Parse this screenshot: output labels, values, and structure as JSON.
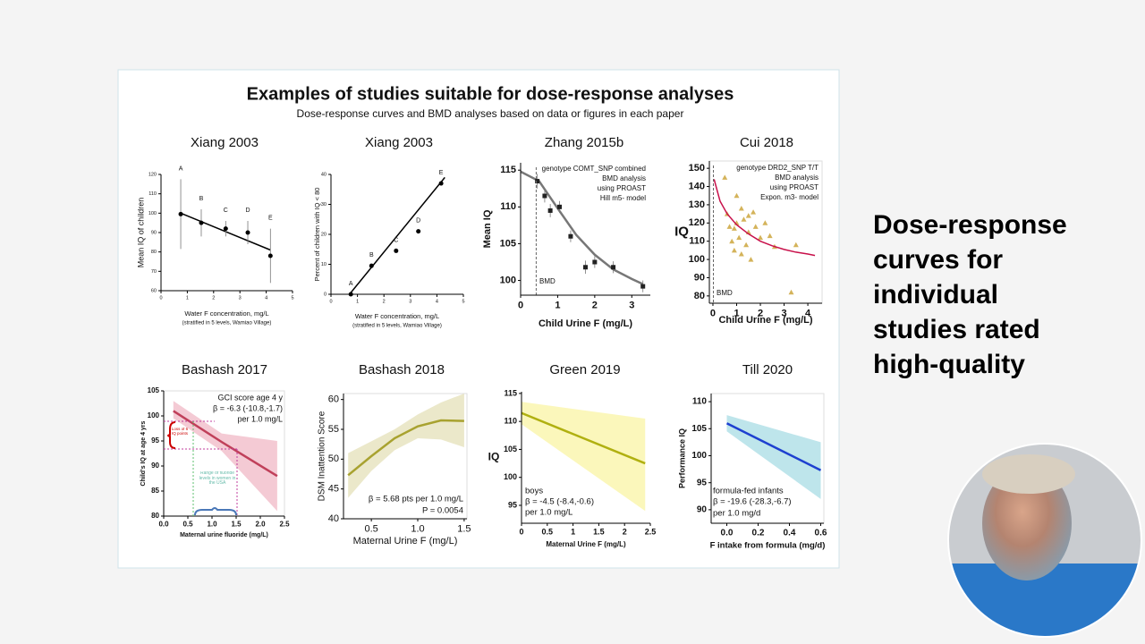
{
  "slide": {
    "title": "Examples of studies suitable for dose-response analyses",
    "subtitle": "Dose-response curves and BMD analyses based on data or figures in each paper",
    "side_text": "Dose-response curves for individual studies rated high-quality"
  },
  "chart_data": [
    {
      "type": "scatter",
      "title": "Xiang 2003",
      "xlabel": "Water F concentration, mg/L",
      "xnote": "(stratified in 5 levels, Wamiao Village)",
      "ylabel": "Mean IQ of children",
      "xlim": [
        0,
        5
      ],
      "xticks": [
        0,
        1,
        2,
        3,
        4,
        5
      ],
      "ylim": [
        60,
        120
      ],
      "yticks": [
        60,
        70,
        80,
        90,
        100,
        110,
        120
      ],
      "series": [
        {
          "style": "line",
          "color": "#000000",
          "x": [
            0.75,
            4.16
          ],
          "y": [
            100,
            81
          ]
        },
        {
          "style": "points",
          "marker": "circle",
          "color": "#000000",
          "x": [
            0.75,
            1.53,
            2.46,
            3.3,
            4.16
          ],
          "y": [
            99.5,
            95,
            92,
            90,
            78
          ],
          "err": [
            18,
            7,
            4,
            6,
            14
          ],
          "labels": [
            "A",
            "B",
            "C",
            "D",
            "E"
          ]
        }
      ]
    },
    {
      "type": "scatter",
      "title": "Xiang 2003",
      "xlabel": "Water F concentration, mg/L",
      "xnote": "(stratified in 5 levels, Wamiao Village)",
      "ylabel": "Percent of children with IQ < 80",
      "xlim": [
        0,
        5
      ],
      "xticks": [
        0,
        1,
        2,
        3,
        4,
        5
      ],
      "ylim": [
        0,
        40
      ],
      "yticks": [
        0,
        10,
        20,
        30,
        40
      ],
      "series": [
        {
          "style": "line",
          "color": "#000000",
          "x": [
            0.7,
            4.3
          ],
          "y": [
            0,
            39
          ]
        },
        {
          "style": "points",
          "marker": "circle",
          "color": "#000000",
          "x": [
            0.75,
            1.53,
            2.46,
            3.3,
            4.16
          ],
          "y": [
            0,
            9.5,
            14.5,
            21,
            37
          ],
          "labels": [
            "A",
            "B",
            "C",
            "D",
            "E"
          ]
        }
      ]
    },
    {
      "type": "line",
      "title": "Zhang 2015b",
      "xlabel": "Child Urine F (mg/L)",
      "ylabel": "Mean IQ",
      "xlim": [
        0,
        3.5
      ],
      "xticks": [
        0,
        1,
        2,
        3
      ],
      "ylim": [
        98,
        116
      ],
      "yticks": [
        100,
        105,
        110,
        115
      ],
      "bmd": 0.42,
      "annotations": [
        "genotype COMT_SNP combined",
        "BMD analysis",
        "using PROAST",
        "Hill m5- model",
        "BMD"
      ],
      "series": [
        {
          "style": "line",
          "color": "#777777",
          "x": [
            0,
            0.5,
            1,
            1.5,
            2,
            2.5,
            3,
            3.3
          ],
          "y": [
            114.8,
            113.5,
            109.8,
            106.2,
            103.5,
            101.5,
            100.2,
            99.5
          ]
        },
        {
          "style": "points",
          "marker": "square",
          "color": "#222222",
          "x": [
            0.45,
            0.65,
            0.8,
            1.05,
            1.35,
            1.75,
            2,
            2.5,
            3.3
          ],
          "y": [
            113.5,
            111.5,
            109.5,
            110,
            106,
            101.8,
            102.5,
            101.8,
            99.2
          ],
          "err": [
            1,
            0.9,
            0.9,
            0.8,
            0.8,
            0.9,
            0.8,
            0.8,
            0.8
          ]
        }
      ]
    },
    {
      "type": "scatter",
      "title": "Cui 2018",
      "xlabel": "Child Urine F (mg/L)",
      "ylabel": "IQ",
      "xlim": [
        -0.15,
        4.6
      ],
      "xticks": [
        0,
        1,
        2,
        3,
        4
      ],
      "ylim": [
        76,
        154
      ],
      "yticks": [
        80,
        90,
        100,
        110,
        120,
        130,
        140,
        150
      ],
      "bmd": 0.02,
      "annotations": [
        "genotype DRD2_SNP T/T",
        "BMD analysis",
        "using PROAST",
        "Expon. m3- model",
        "BMD"
      ],
      "series": [
        {
          "style": "points",
          "marker": "triangle",
          "color": "#d4b35a",
          "x": [
            0.5,
            0.6,
            0.7,
            0.8,
            0.9,
            1.0,
            1.0,
            1.1,
            1.2,
            1.3,
            1.4,
            1.5,
            1.6,
            1.7,
            1.8,
            2.0,
            2.2,
            2.4,
            2.6,
            3.3,
            3.5,
            1.2,
            0.9,
            1.5
          ],
          "y": [
            145,
            125,
            118,
            110,
            105,
            135,
            120,
            112,
            128,
            122,
            108,
            115,
            100,
            126,
            118,
            112,
            120,
            113,
            107,
            82,
            108,
            103,
            117,
            124
          ]
        },
        {
          "style": "line",
          "color": "#c8104a",
          "x": [
            0.05,
            0.3,
            0.6,
            1,
            1.5,
            2,
            2.5,
            3,
            3.5,
            4,
            4.3
          ],
          "y": [
            144,
            132,
            125,
            119,
            114,
            110,
            107.5,
            105.5,
            104,
            103,
            102.2
          ]
        }
      ]
    },
    {
      "type": "line",
      "title": "Bashash 2017",
      "xlabel": "Maternal urine fluoride (mg/L)",
      "ylabel": "Child's IQ at age 4 yrs",
      "xlim": [
        0,
        2.5
      ],
      "xticks": [
        {
          "value": 0,
          "label": "0.0"
        },
        0.5,
        {
          "value": 1,
          "label": "1.0"
        },
        1.5,
        {
          "value": 2,
          "label": "2.0"
        },
        2.5
      ],
      "ylim": [
        80,
        105
      ],
      "yticks": [
        80,
        85,
        90,
        95,
        100,
        105
      ],
      "annotations": [
        "GCI score age 4 y",
        "β = -6.3 (-10.8,-1.7)",
        "per 1.0 mg/L",
        "Loss of 6 IQ points",
        "Range of fluoride levels in women in the USA"
      ],
      "series": [
        {
          "style": "band",
          "color": "#f0b8c6",
          "x": [
            0.2,
            1.2,
            2.35
          ],
          "upper": [
            103,
            96.5,
            95
          ],
          "lower": [
            99.5,
            93,
            81
          ]
        },
        {
          "style": "line",
          "color": "#c0405a",
          "x": [
            0.2,
            1.2,
            2.35
          ],
          "y": [
            101,
            94.8,
            88
          ]
        }
      ]
    },
    {
      "type": "line",
      "title": "Bashash 2018",
      "xlabel": "Maternal Urine F (mg/L)",
      "ylabel": "DSM Inattention Score",
      "xlim": [
        0.2,
        1.53
      ],
      "xticks": [
        0.5,
        {
          "value": 1,
          "label": "1.0"
        },
        1.5
      ],
      "ylim": [
        40,
        61
      ],
      "yticks": [
        40,
        45,
        50,
        55,
        60
      ],
      "annotations": [
        "β = 5.68 pts per 1.0 mg/L",
        "P = 0.0054"
      ],
      "series": [
        {
          "style": "band",
          "color": "#e4e0b8",
          "x": [
            0.25,
            0.5,
            0.75,
            1.0,
            1.25,
            1.5
          ],
          "upper": [
            51,
            53,
            55,
            57.5,
            59.5,
            61
          ],
          "lower": [
            43.5,
            48,
            51.5,
            53.5,
            53.3,
            52
          ]
        },
        {
          "style": "line",
          "color": "#a8a230",
          "x": [
            0.25,
            0.5,
            0.75,
            1.0,
            1.25,
            1.5
          ],
          "y": [
            47.3,
            50.5,
            53.5,
            55.5,
            56.5,
            56.4
          ]
        }
      ]
    },
    {
      "type": "line",
      "title": "Green 2019",
      "xlabel": "Maternal Urine F (mg/L)",
      "ylabel": "IQ",
      "xlim": [
        0,
        2.5
      ],
      "xticks": [
        0,
        0.5,
        1,
        1.5,
        2,
        2.5
      ],
      "ylim": [
        91.8,
        115.3
      ],
      "yticks": [
        95,
        100,
        105,
        110,
        115
      ],
      "annotations": [
        "boys",
        "β = -4.5 (-8.4,-0.6)",
        "per 1.0 mg/L"
      ],
      "series": [
        {
          "style": "band",
          "color": "#faf4a4",
          "x": [
            0,
            2.4
          ],
          "upper": [
            113.5,
            110.5
          ],
          "lower": [
            109.5,
            94
          ]
        },
        {
          "style": "line",
          "color": "#b0b010",
          "x": [
            0,
            2.4
          ],
          "y": [
            111.5,
            102.5
          ]
        }
      ]
    },
    {
      "type": "line",
      "title": "Till 2020",
      "xlabel": "F intake from formula (mg/d)",
      "ylabel": "Performance IQ",
      "xlim": [
        -0.1,
        0.62
      ],
      "xticks": [
        {
          "value": 0,
          "label": "0.0"
        },
        0.2,
        0.4,
        0.6
      ],
      "ylim": [
        87.5,
        111.5
      ],
      "yticks": [
        90,
        95,
        100,
        105,
        110
      ],
      "annotations": [
        "formula-fed infants",
        "β = -19.6 (-28.3,-6.7)",
        "per 1.0 mg/d"
      ],
      "series": [
        {
          "style": "band",
          "color": "#a8dce4",
          "x": [
            0,
            0.6
          ],
          "upper": [
            107.5,
            102.5
          ],
          "lower": [
            104.5,
            92
          ]
        },
        {
          "style": "line",
          "color": "#1e40d0",
          "x": [
            0,
            0.6
          ],
          "y": [
            106,
            97.3
          ]
        }
      ]
    }
  ]
}
